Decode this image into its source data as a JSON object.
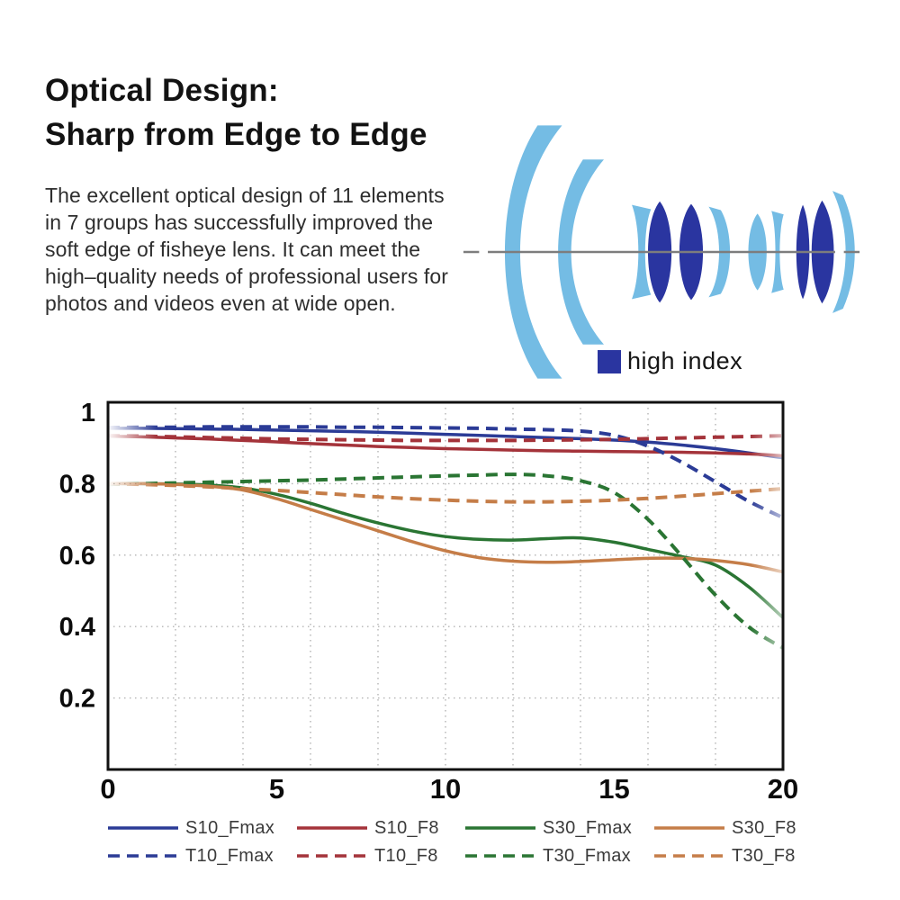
{
  "header": {
    "title": "Optical Design:\nSharp from Edge to Edge",
    "paragraph": "The excellent optical design of 11 elements in 7 groups has successfully improved the soft edge of fisheye lens. It can meet the high–quality needs of professional users for photos and videos even at wide open."
  },
  "lens": {
    "caption": "high index",
    "colors": {
      "standard_glass": "#74bce4",
      "high_index_glass": "#2a35a0",
      "axis": "#7d7d7d"
    }
  },
  "chart_data": {
    "type": "line",
    "title": "",
    "xlabel": "",
    "ylabel": "",
    "xlim": [
      0,
      20
    ],
    "ylim": [
      0,
      1.03
    ],
    "grid": "dotted gray; vertical every 2 units, horizontal every 0.2",
    "legend_position": "below chart, 4 columns x 2 rows",
    "edge_fade": "curves fade in at left edge and fade out slightly at right edge",
    "x_ticks": [
      0,
      5,
      10,
      15,
      20
    ],
    "x_tick_labels": [
      "0",
      "5",
      "10",
      "15",
      "20"
    ],
    "y_ticks": [
      0.2,
      0.4,
      0.6,
      0.8,
      1
    ],
    "y_tick_labels": [
      "0.2",
      "0.4",
      "0.6",
      "0.8",
      "1"
    ],
    "x_gridlines": [
      2,
      4,
      6,
      8,
      10,
      12,
      14,
      16,
      18
    ],
    "y_gridlines": [
      0.2,
      0.4,
      0.6,
      0.8
    ],
    "x": [
      0,
      1,
      2,
      3,
      4,
      5,
      6,
      7,
      8,
      9,
      10,
      11,
      12,
      13,
      14,
      15,
      16,
      17,
      18,
      19,
      20
    ],
    "series": [
      {
        "name": "S10_Fmax",
        "color": "#2b3b96",
        "style": "solid",
        "values": [
          0.955,
          0.955,
          0.954,
          0.953,
          0.952,
          0.95,
          0.948,
          0.946,
          0.944,
          0.941,
          0.938,
          0.935,
          0.932,
          0.929,
          0.926,
          0.922,
          0.916,
          0.908,
          0.898,
          0.886,
          0.872
        ]
      },
      {
        "name": "S10_F8",
        "color": "#a4333a",
        "style": "solid",
        "values": [
          0.933,
          0.931,
          0.928,
          0.925,
          0.921,
          0.917,
          0.912,
          0.908,
          0.904,
          0.901,
          0.898,
          0.896,
          0.894,
          0.892,
          0.891,
          0.89,
          0.889,
          0.888,
          0.886,
          0.883,
          0.878
        ]
      },
      {
        "name": "S30_Fmax",
        "color": "#2a7533",
        "style": "solid",
        "values": [
          0.8,
          0.8,
          0.799,
          0.796,
          0.788,
          0.77,
          0.745,
          0.716,
          0.69,
          0.668,
          0.652,
          0.644,
          0.642,
          0.646,
          0.648,
          0.636,
          0.616,
          0.596,
          0.572,
          0.51,
          0.425
        ]
      },
      {
        "name": "S30_F8",
        "color": "#c57d48",
        "style": "solid",
        "values": [
          0.8,
          0.8,
          0.798,
          0.793,
          0.782,
          0.758,
          0.728,
          0.698,
          0.668,
          0.638,
          0.612,
          0.593,
          0.583,
          0.58,
          0.582,
          0.587,
          0.591,
          0.591,
          0.585,
          0.573,
          0.553
        ]
      },
      {
        "name": "T10_Fmax",
        "color": "#2b3b96",
        "style": "dashed",
        "values": [
          0.957,
          0.958,
          0.958,
          0.959,
          0.959,
          0.959,
          0.959,
          0.958,
          0.958,
          0.957,
          0.956,
          0.955,
          0.953,
          0.951,
          0.947,
          0.935,
          0.905,
          0.86,
          0.805,
          0.75,
          0.705
        ]
      },
      {
        "name": "T10_F8",
        "color": "#a4333a",
        "style": "dashed",
        "values": [
          0.934,
          0.933,
          0.931,
          0.929,
          0.927,
          0.925,
          0.924,
          0.923,
          0.922,
          0.921,
          0.921,
          0.921,
          0.921,
          0.922,
          0.923,
          0.924,
          0.926,
          0.928,
          0.93,
          0.932,
          0.934
        ]
      },
      {
        "name": "T30_Fmax",
        "color": "#2a7533",
        "style": "dashed",
        "values": [
          0.798,
          0.8,
          0.802,
          0.804,
          0.806,
          0.808,
          0.81,
          0.813,
          0.816,
          0.819,
          0.822,
          0.824,
          0.826,
          0.822,
          0.808,
          0.775,
          0.7,
          0.597,
          0.488,
          0.398,
          0.34
        ]
      },
      {
        "name": "T30_F8",
        "color": "#c57d48",
        "style": "dashed",
        "values": [
          0.8,
          0.798,
          0.795,
          0.791,
          0.786,
          0.781,
          0.775,
          0.769,
          0.763,
          0.758,
          0.754,
          0.751,
          0.749,
          0.749,
          0.751,
          0.754,
          0.759,
          0.765,
          0.772,
          0.779,
          0.786
        ]
      }
    ]
  }
}
